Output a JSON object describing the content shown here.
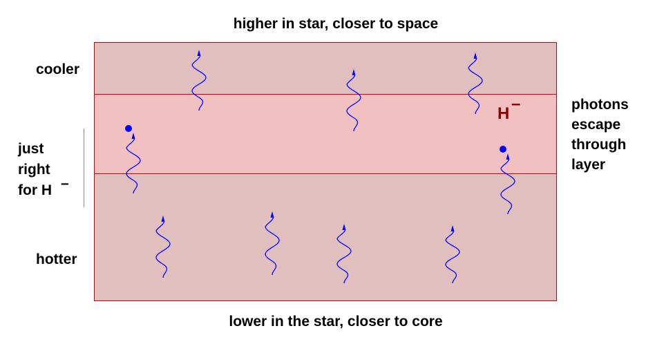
{
  "labels": {
    "top": "higher in star, closer to space",
    "bottom": "lower in the star, closer to core",
    "cooler": "cooler",
    "hotter": "hotter",
    "just_right": [
      "just",
      "right",
      "for H"
    ],
    "just_right_superscript": "–",
    "escape": [
      "photons",
      "escape",
      "through",
      "layer"
    ],
    "layer_ion": "H",
    "layer_ion_superscript": "–"
  },
  "colors": {
    "cool_layer": "#e1bfbf",
    "middle_layer": "#f2c0c0",
    "hot_layer": "#e1bfbf",
    "layer_border": "#cc0000",
    "photon": "#0000ff",
    "ion_label": "#8b0000"
  }
}
